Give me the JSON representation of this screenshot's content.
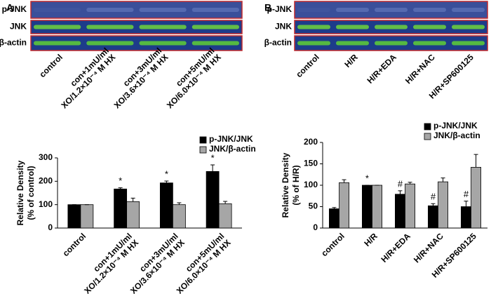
{
  "chart_data": [
    {
      "type": "bar",
      "panel": "A",
      "blot_rows": [
        "p-JNK",
        "JNK",
        "β-actin"
      ],
      "categories": [
        [
          "control"
        ],
        [
          "con+1mU/ml",
          "XO/1.2×10⁻⁴ M HX"
        ],
        [
          "con+3mU/ml",
          "XO/3.6×10⁻⁴ M HX"
        ],
        [
          "con+5mU/ml",
          "XO/6.0×10⁻⁴ M HX"
        ]
      ],
      "series": [
        {
          "name": "p-JNK/JNK",
          "color": "#000000",
          "values": [
            100,
            167,
            193,
            242
          ],
          "errors": [
            0,
            5,
            8,
            28
          ]
        },
        {
          "name": "JNK/β-actin",
          "color": "#a6a6a6",
          "values": [
            100,
            113,
            100,
            104
          ],
          "errors": [
            0,
            15,
            8,
            10
          ]
        }
      ],
      "ylim": [
        0,
        300
      ],
      "yticks": [
        0,
        100,
        200,
        300
      ],
      "y_label": [
        "Relative Density",
        "(% of control)"
      ],
      "annotations": [
        {
          "text": "*",
          "category": 1,
          "series": 0
        },
        {
          "text": "*",
          "category": 2,
          "series": 0
        },
        {
          "text": "*",
          "category": 3,
          "series": 0
        }
      ]
    },
    {
      "type": "bar",
      "panel": "B",
      "blot_rows": [
        "p-JNK",
        "JNK",
        "β-actin"
      ],
      "categories": [
        [
          "control"
        ],
        [
          "H/R"
        ],
        [
          "H/R+EDA"
        ],
        [
          "H/R+NAC"
        ],
        [
          "H/R+SP600125"
        ]
      ],
      "series": [
        {
          "name": "p-JNK/JNK",
          "color": "#000000",
          "values": [
            45,
            100,
            79,
            52,
            50
          ],
          "errors": [
            3,
            0,
            8,
            5,
            13
          ]
        },
        {
          "name": "JNK/β-actin",
          "color": "#a6a6a6",
          "values": [
            106,
            100,
            103,
            108,
            142
          ],
          "errors": [
            7,
            0,
            4,
            9,
            30
          ]
        }
      ],
      "ylim": [
        0,
        200
      ],
      "yticks": [
        0,
        50,
        100,
        150,
        200
      ],
      "y_label": [
        "Relative Density",
        "(% of H/R)"
      ],
      "annotations": [
        {
          "text": "*",
          "category": 1,
          "series": 0
        },
        {
          "text": "#",
          "category": 2,
          "series": 0
        },
        {
          "text": "#",
          "category": 3,
          "series": 0
        },
        {
          "text": "#",
          "category": 4,
          "series": 0
        }
      ]
    }
  ]
}
